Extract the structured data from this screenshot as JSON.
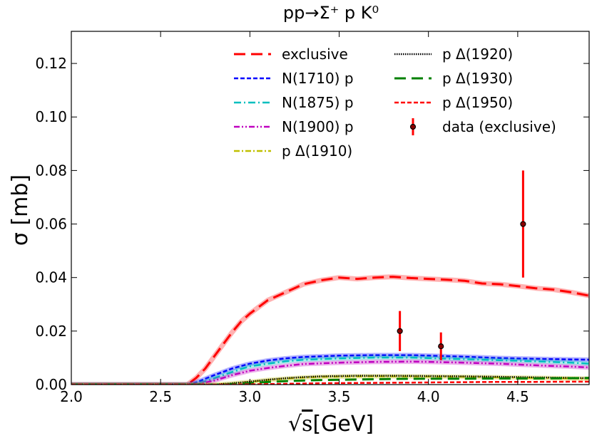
{
  "chart_data": {
    "type": "line",
    "title": "pp→Σ⁺ p K⁰",
    "xlabel": "√s [GeV]",
    "xlabel_parts": {
      "radical": "√",
      "var": "s",
      "unit": "[GeV]"
    },
    "ylabel": "σ [mb]",
    "xlim": [
      2.0,
      4.9
    ],
    "ylim": [
      0.0,
      0.132
    ],
    "xticks": [
      2.0,
      2.5,
      3.0,
      3.5,
      4.0,
      4.5
    ],
    "xtick_labels": [
      "2.0",
      "2.5",
      "3.0",
      "3.5",
      "4.0",
      "4.5"
    ],
    "yticks": [
      0.0,
      0.02,
      0.04,
      0.06,
      0.08,
      0.1,
      0.12
    ],
    "ytick_labels": [
      "0.00",
      "0.02",
      "0.04",
      "0.06",
      "0.08",
      "0.10",
      "0.12"
    ],
    "legend_position": "top-right",
    "series": [
      {
        "name": "exclusive",
        "color": "#ff0000",
        "dash": "16,8",
        "width": 3,
        "band": true,
        "x": [
          2.0,
          2.5,
          2.65,
          2.7,
          2.75,
          2.8,
          2.85,
          2.9,
          2.95,
          3.0,
          3.1,
          3.2,
          3.3,
          3.4,
          3.5,
          3.6,
          3.7,
          3.8,
          3.9,
          4.0,
          4.1,
          4.2,
          4.3,
          4.4,
          4.5,
          4.6,
          4.7,
          4.8,
          4.9
        ],
        "y": [
          0.0,
          0.0,
          0.0,
          0.0025,
          0.006,
          0.0105,
          0.015,
          0.0195,
          0.0235,
          0.0265,
          0.0315,
          0.0345,
          0.0375,
          0.039,
          0.04,
          0.0395,
          0.04,
          0.0403,
          0.0398,
          0.0395,
          0.0392,
          0.0388,
          0.0378,
          0.0375,
          0.0368,
          0.036,
          0.0355,
          0.0345,
          0.0332
        ]
      },
      {
        "name": "N(1710) p",
        "color": "#0000ff",
        "dash": "6,3",
        "width": 2.5,
        "band": true,
        "x": [
          2.0,
          2.65,
          2.7,
          2.8,
          2.9,
          3.0,
          3.1,
          3.2,
          3.3,
          3.5,
          3.7,
          3.9,
          4.0,
          4.2,
          4.4,
          4.6,
          4.8,
          4.9
        ],
        "y": [
          0.0,
          0.0,
          0.0008,
          0.0035,
          0.006,
          0.0078,
          0.009,
          0.0098,
          0.0103,
          0.0108,
          0.011,
          0.011,
          0.0108,
          0.0104,
          0.0099,
          0.0096,
          0.0094,
          0.0093
        ]
      },
      {
        "name": "N(1875) p",
        "color": "#00bfbf",
        "dash": "10,4,2,4",
        "width": 2.5,
        "band": true,
        "x": [
          2.0,
          2.68,
          2.75,
          2.85,
          2.95,
          3.0,
          3.1,
          3.2,
          3.3,
          3.5,
          3.7,
          3.9,
          4.0,
          4.2,
          4.4,
          4.6,
          4.8,
          4.9
        ],
        "y": [
          0.0,
          0.0,
          0.0012,
          0.0035,
          0.0058,
          0.0068,
          0.0078,
          0.0087,
          0.0093,
          0.0098,
          0.0101,
          0.0101,
          0.0099,
          0.0095,
          0.0091,
          0.0087,
          0.0082,
          0.0078
        ]
      },
      {
        "name": "N(1900) p",
        "color": "#bf00bf",
        "dash": "8,3,2,3,2,3",
        "width": 2.5,
        "band": true,
        "x": [
          2.0,
          2.7,
          2.8,
          2.9,
          3.0,
          3.1,
          3.2,
          3.3,
          3.5,
          3.7,
          3.9,
          4.0,
          4.2,
          4.4,
          4.6,
          4.8,
          4.9
        ],
        "y": [
          0.0,
          0.0,
          0.0015,
          0.0035,
          0.0052,
          0.0062,
          0.007,
          0.0077,
          0.0082,
          0.0085,
          0.0086,
          0.0085,
          0.0082,
          0.0078,
          0.0072,
          0.0067,
          0.0064
        ]
      },
      {
        "name": "p Δ(1910)",
        "color": "#bfbf00",
        "dash": "8,3,2,3",
        "width": 2.5,
        "band": true,
        "x": [
          2.0,
          2.8,
          2.9,
          3.0,
          3.1,
          3.2,
          3.3,
          3.4,
          3.6,
          3.8,
          4.0,
          4.2,
          4.4,
          4.6,
          4.8,
          4.9
        ],
        "y": [
          0.0,
          0.0,
          0.0004,
          0.001,
          0.0017,
          0.0022,
          0.0026,
          0.0029,
          0.0031,
          0.0031,
          0.003,
          0.0029,
          0.0027,
          0.0025,
          0.0023,
          0.0022
        ]
      },
      {
        "name": "p Δ(1920)",
        "color": "#000000",
        "dash": "1.5,1.5",
        "width": 2.5,
        "band": false,
        "x": [
          2.0,
          2.8,
          2.9,
          3.0,
          3.1,
          3.2,
          3.3,
          3.4,
          3.6,
          3.8,
          4.0,
          4.2,
          4.4,
          4.6,
          4.8,
          4.9
        ],
        "y": [
          0.0,
          0.0,
          0.0005,
          0.0011,
          0.0018,
          0.0024,
          0.0028,
          0.0031,
          0.0033,
          0.0033,
          0.0032,
          0.0031,
          0.0029,
          0.0027,
          0.0025,
          0.0024
        ]
      },
      {
        "name": "p Δ(1930)",
        "color": "#008000",
        "dash": "16,8",
        "width": 3,
        "band": false,
        "x": [
          2.0,
          2.85,
          2.95,
          3.05,
          3.2,
          3.4,
          3.6,
          3.8,
          4.0,
          4.2,
          4.4,
          4.6,
          4.8,
          4.9
        ],
        "y": [
          0.0,
          0.0,
          0.0003,
          0.0008,
          0.0013,
          0.0017,
          0.0019,
          0.0021,
          0.0022,
          0.0022,
          0.0023,
          0.0023,
          0.0024,
          0.0025
        ]
      },
      {
        "name": "p Δ(1950)",
        "color": "#ff0000",
        "dash": "6,3",
        "width": 2.5,
        "band": false,
        "x": [
          2.0,
          2.9,
          3.0,
          3.2,
          3.4,
          3.6,
          3.8,
          4.0,
          4.2,
          4.4,
          4.6,
          4.8,
          4.9
        ],
        "y": [
          0.0,
          0.0,
          0.0001,
          0.0003,
          0.0005,
          0.0006,
          0.0007,
          0.0008,
          0.0009,
          0.001,
          0.001,
          0.0011,
          0.0011
        ]
      }
    ],
    "data_points": {
      "name": "data (exclusive)",
      "color": "#ff0000",
      "points": [
        {
          "x": 3.84,
          "y": 0.02,
          "err": 0.0075
        },
        {
          "x": 4.07,
          "y": 0.0143,
          "err": 0.0052
        },
        {
          "x": 4.53,
          "y": 0.06,
          "err": 0.02
        }
      ]
    }
  }
}
